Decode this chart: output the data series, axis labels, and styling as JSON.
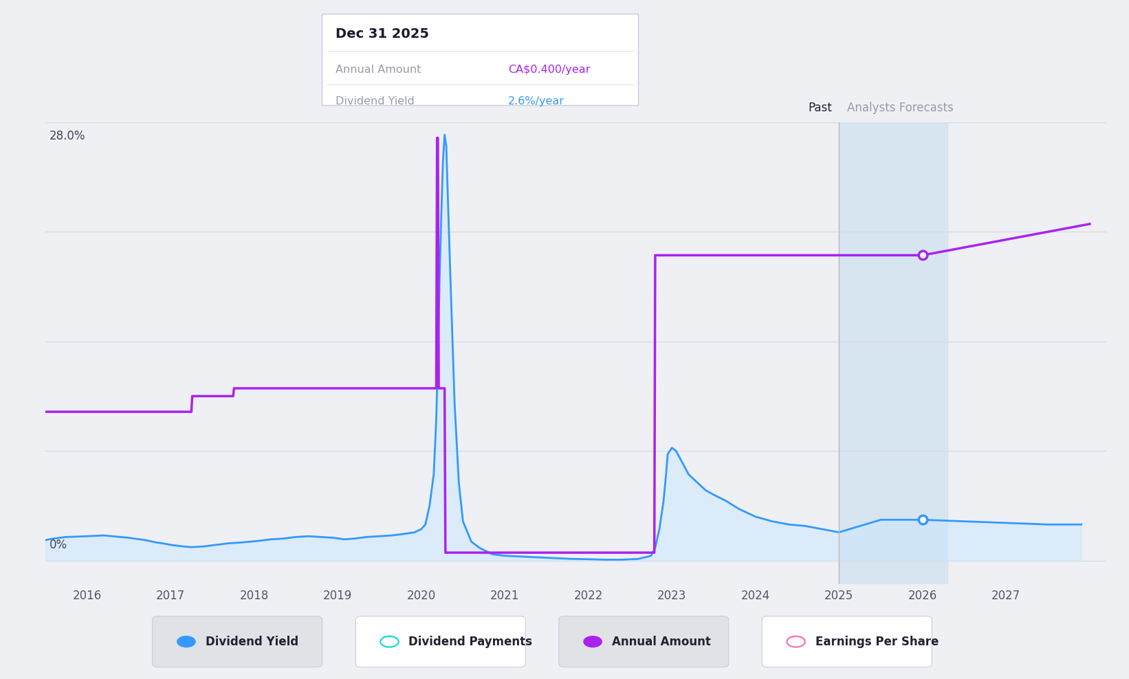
{
  "bg_color": "#eef0f3",
  "plot_bg_color": "#eef0f3",
  "y_max": 28.0,
  "y_min": -1.5,
  "x_min": 2015.5,
  "x_max": 2028.2,
  "y_label_28": "28.0%",
  "y_label_0": "0%",
  "forecast_start": 2025.0,
  "forecast_end": 2026.3,
  "past_label": "Past",
  "forecast_label": "Analysts Forecasts",
  "tooltip_title": "Dec 31 2025",
  "tooltip_annual": "CA$0.400/year",
  "tooltip_yield": "2.6%/year",
  "tooltip_annual_color": "#aa22ee",
  "tooltip_yield_color": "#3399ff",
  "legend_items": [
    {
      "label": "Dividend Yield",
      "color": "#3399ff",
      "style": "filled_circle"
    },
    {
      "label": "Dividend Payments",
      "color": "#00ddcc",
      "style": "open_circle"
    },
    {
      "label": "Annual Amount",
      "color": "#aa22ee",
      "style": "filled_circle"
    },
    {
      "label": "Earnings Per Share",
      "color": "#ff66aa",
      "style": "open_circle"
    }
  ],
  "dividend_yield_x": [
    2015.5,
    2015.6,
    2015.75,
    2016.0,
    2016.2,
    2016.4,
    2016.5,
    2016.7,
    2016.83,
    2016.9,
    2017.0,
    2017.15,
    2017.25,
    2017.4,
    2017.55,
    2017.7,
    2017.85,
    2017.95,
    2018.05,
    2018.2,
    2018.35,
    2018.5,
    2018.65,
    2018.8,
    2018.95,
    2019.08,
    2019.2,
    2019.35,
    2019.5,
    2019.65,
    2019.8,
    2019.92,
    2020.0,
    2020.05,
    2020.1,
    2020.15,
    2020.18,
    2020.2,
    2020.22,
    2020.24,
    2020.26,
    2020.28,
    2020.3,
    2020.32,
    2020.35,
    2020.4,
    2020.45,
    2020.5,
    2020.6,
    2020.7,
    2020.85,
    2021.0,
    2021.2,
    2021.4,
    2021.6,
    2021.8,
    2022.0,
    2022.2,
    2022.4,
    2022.6,
    2022.75,
    2022.8,
    2022.85,
    2022.9,
    2022.93,
    2022.95,
    2023.0,
    2023.05,
    2023.1,
    2023.15,
    2023.2,
    2023.3,
    2023.4,
    2023.5,
    2023.65,
    2023.8,
    2024.0,
    2024.2,
    2024.4,
    2024.6,
    2024.8,
    2025.0,
    2025.5,
    2026.0,
    2026.5,
    2027.0,
    2027.5,
    2027.9
  ],
  "dividend_yield_y": [
    1.3,
    1.4,
    1.5,
    1.55,
    1.6,
    1.5,
    1.45,
    1.3,
    1.15,
    1.1,
    1.0,
    0.9,
    0.85,
    0.9,
    1.0,
    1.1,
    1.15,
    1.2,
    1.25,
    1.35,
    1.4,
    1.5,
    1.55,
    1.5,
    1.45,
    1.35,
    1.4,
    1.5,
    1.55,
    1.6,
    1.7,
    1.8,
    2.0,
    2.3,
    3.5,
    5.5,
    9.0,
    13.0,
    18.0,
    22.0,
    25.5,
    27.2,
    26.5,
    23.0,
    18.0,
    10.0,
    5.0,
    2.5,
    1.2,
    0.8,
    0.4,
    0.3,
    0.25,
    0.2,
    0.15,
    0.1,
    0.08,
    0.05,
    0.05,
    0.1,
    0.3,
    0.8,
    2.0,
    3.8,
    5.5,
    6.8,
    7.2,
    7.0,
    6.5,
    6.0,
    5.5,
    5.0,
    4.5,
    4.2,
    3.8,
    3.3,
    2.8,
    2.5,
    2.3,
    2.2,
    2.0,
    1.8,
    2.6,
    2.6,
    2.5,
    2.4,
    2.3,
    2.3
  ],
  "annual_amount_x": [
    2015.5,
    2016.0,
    2016.5,
    2017.0,
    2017.25,
    2017.26,
    2017.5,
    2017.75,
    2017.76,
    2018.0,
    2019.0,
    2020.0,
    2020.18,
    2020.19,
    2020.2,
    2020.21,
    2020.28,
    2020.29,
    2020.3,
    2020.5,
    2021.0,
    2022.0,
    2022.5,
    2022.75,
    2022.79,
    2022.8,
    2022.85,
    2022.86,
    2023.0,
    2024.0,
    2025.0,
    2025.5,
    2026.0,
    2026.5,
    2027.0,
    2027.5,
    2028.0
  ],
  "annual_amount_y": [
    9.5,
    9.5,
    9.5,
    9.5,
    9.5,
    10.5,
    10.5,
    10.5,
    11.0,
    11.0,
    11.0,
    11.0,
    11.0,
    27.0,
    27.0,
    11.0,
    11.0,
    0.5,
    0.5,
    0.5,
    0.5,
    0.5,
    0.5,
    0.5,
    0.5,
    19.5,
    19.5,
    19.5,
    19.5,
    19.5,
    19.5,
    19.5,
    19.5,
    20.0,
    20.5,
    21.0,
    21.5
  ],
  "marker_x": 2026.0,
  "marker_yield_y": 2.6,
  "marker_annual_y": 19.5,
  "line_color_yield": "#3399ff",
  "line_color_annual": "#aa22ee",
  "fill_color_yield": "#cce8ff",
  "forecast_bg_color": "#c8dff0",
  "grid_color": "#d8dce2",
  "x_ticks": [
    2016,
    2017,
    2018,
    2019,
    2020,
    2021,
    2022,
    2023,
    2024,
    2025,
    2026,
    2027
  ]
}
